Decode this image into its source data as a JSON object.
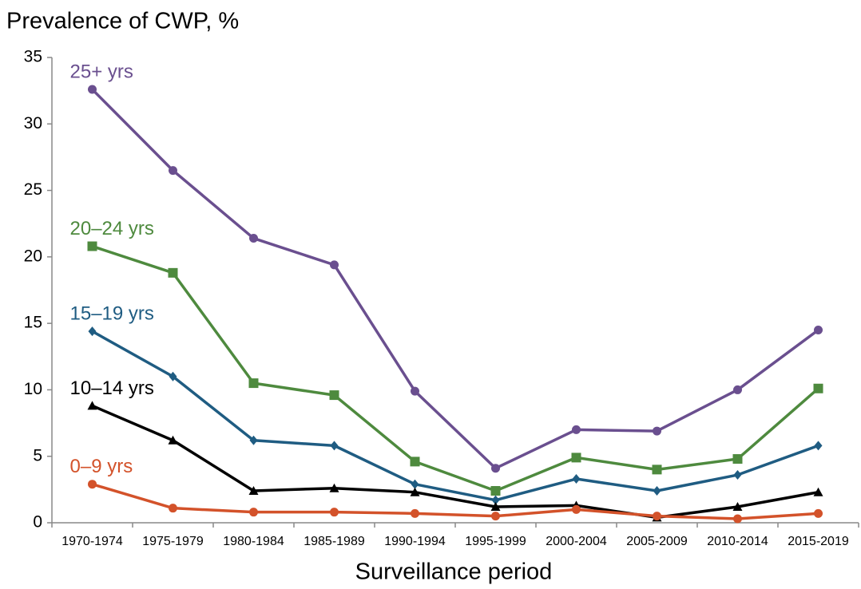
{
  "chart_data": {
    "type": "line",
    "title": "Prevalence of CWP, %",
    "x_label": "Surveillance period",
    "categories": [
      "1970-1974",
      "1975-1979",
      "1980-1984",
      "1985-1989",
      "1990-1994",
      "1995-1999",
      "2000-2004",
      "2005-2009",
      "2010-2014",
      "2015-2019"
    ],
    "series": [
      {
        "name": "25+ yrs",
        "color": "#6a4f8f",
        "marker": "circle",
        "values": [
          32.6,
          26.5,
          21.4,
          19.4,
          9.9,
          4.1,
          7.0,
          6.9,
          10.0,
          14.5
        ]
      },
      {
        "name": "20–24 yrs",
        "color": "#4e8a3e",
        "marker": "square",
        "values": [
          20.8,
          18.8,
          10.5,
          9.6,
          4.6,
          2.4,
          4.9,
          4.0,
          4.8,
          10.1
        ]
      },
      {
        "name": "15–19 yrs",
        "color": "#1f5c82",
        "marker": "diamond",
        "values": [
          14.4,
          11.0,
          6.2,
          5.8,
          2.9,
          1.7,
          3.3,
          2.4,
          3.6,
          5.8
        ]
      },
      {
        "name": "10–14 yrs",
        "color": "#000000",
        "marker": "triangle",
        "values": [
          8.8,
          6.2,
          2.4,
          2.6,
          2.3,
          1.2,
          1.3,
          0.4,
          1.2,
          2.3
        ]
      },
      {
        "name": "0–9 yrs",
        "color": "#d3522a",
        "marker": "circle",
        "values": [
          2.9,
          1.1,
          0.8,
          0.8,
          0.7,
          0.5,
          1.0,
          0.5,
          0.3,
          0.7
        ]
      }
    ],
    "ylim": [
      0,
      35
    ],
    "yticks": [
      0,
      5,
      10,
      15,
      20,
      25,
      30,
      35
    ],
    "grid": false
  }
}
